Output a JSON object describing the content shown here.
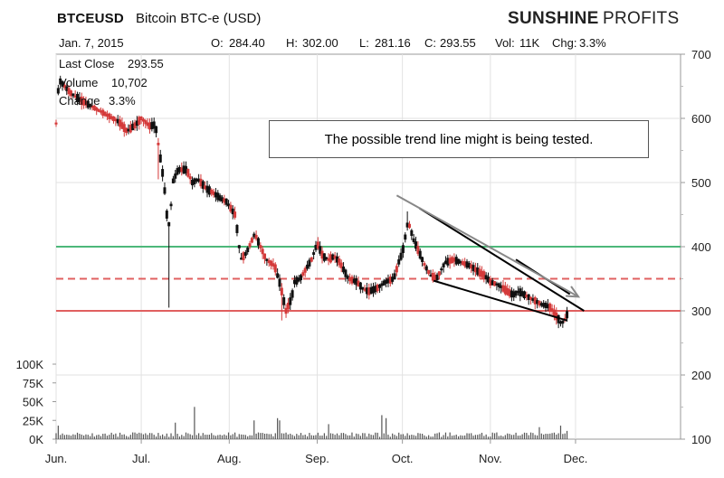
{
  "header": {
    "symbol": "BTCEUSD",
    "description": "Bitcoin BTC-e (USD)",
    "brand_bold": "SUNSHINE",
    "brand_light": "PROFITS",
    "date": "Jan. 7, 2015",
    "ohlc": [
      {
        "label": "O:",
        "value": "284.40"
      },
      {
        "label": "H:",
        "value": "302.00"
      },
      {
        "label": "L:",
        "value": "281.16"
      },
      {
        "label": "C:",
        "value": "293.55"
      },
      {
        "label": "Vol:",
        "value": "11K"
      },
      {
        "label": "Chg:",
        "value": "3.3%"
      }
    ],
    "last_close_label": "Last Close",
    "last_close": "293.55",
    "volume_label": "Volume",
    "volume": "10,702",
    "change_label": "Change",
    "change": "3.3%"
  },
  "annotation": "The possible trend line might is being tested.",
  "chart_data": {
    "type": "candlestick",
    "y_ticks": [
      "700",
      "600",
      "500",
      "400",
      "300",
      "200",
      "100"
    ],
    "y_range": [
      100,
      700
    ],
    "volume_ticks": [
      "100K",
      "75K",
      "50K",
      "25K",
      "0K"
    ],
    "volume_range": [
      0,
      100000
    ],
    "x_labels": [
      "Jun.",
      "Jul.",
      "Aug.",
      "Sep.",
      "Oct.",
      "Nov.",
      "Dec."
    ],
    "x_range_days": [
      0,
      220
    ],
    "x_label_days": [
      0,
      30,
      61,
      92,
      122,
      153,
      183
    ],
    "horizontal_lines": [
      {
        "value": 400,
        "color": "#4db87a",
        "style": "solid"
      },
      {
        "value": 350,
        "color": "#e06060",
        "style": "dashed"
      },
      {
        "value": 300,
        "color": "#e06060",
        "style": "solid"
      }
    ],
    "trend_lines": [
      {
        "from": [
          128,
          460
        ],
        "to": [
          186,
          300
        ],
        "color": "#000"
      },
      {
        "from": [
          133,
          347
        ],
        "to": [
          180,
          285
        ],
        "color": "#000"
      },
      {
        "from": [
          162,
          380
        ],
        "to": [
          181,
          326
        ],
        "color": "#000"
      }
    ],
    "arrow": {
      "from": [
        120,
        480
      ],
      "to": [
        184,
        322
      ],
      "color": "#888"
    },
    "price_anchors": [
      [
        0,
        592
      ],
      [
        1,
        660
      ],
      [
        5,
        640
      ],
      [
        8,
        630
      ],
      [
        12,
        620
      ],
      [
        18,
        605
      ],
      [
        22,
        595
      ],
      [
        25,
        580
      ],
      [
        28,
        590
      ],
      [
        30,
        600
      ],
      [
        33,
        588
      ],
      [
        35,
        590
      ],
      [
        36,
        560
      ],
      [
        37,
        530
      ],
      [
        38,
        500
      ],
      [
        39,
        450
      ],
      [
        40,
        430
      ],
      [
        41,
        500
      ],
      [
        43,
        520
      ],
      [
        46,
        520
      ],
      [
        48,
        500
      ],
      [
        50,
        505
      ],
      [
        53,
        490
      ],
      [
        55,
        485
      ],
      [
        58,
        475
      ],
      [
        60,
        470
      ],
      [
        63,
        450
      ],
      [
        64,
        420
      ],
      [
        65,
        380
      ],
      [
        67,
        390
      ],
      [
        70,
        420
      ],
      [
        72,
        400
      ],
      [
        74,
        380
      ],
      [
        77,
        370
      ],
      [
        79,
        340
      ],
      [
        80,
        320
      ],
      [
        81,
        300
      ],
      [
        83,
        320
      ],
      [
        84,
        345
      ],
      [
        86,
        350
      ],
      [
        88,
        365
      ],
      [
        90,
        380
      ],
      [
        92,
        405
      ],
      [
        94,
        385
      ],
      [
        96,
        380
      ],
      [
        98,
        385
      ],
      [
        100,
        375
      ],
      [
        103,
        350
      ],
      [
        106,
        345
      ],
      [
        108,
        335
      ],
      [
        110,
        330
      ],
      [
        113,
        335
      ],
      [
        116,
        345
      ],
      [
        119,
        350
      ],
      [
        121,
        380
      ],
      [
        122,
        390
      ],
      [
        124,
        440
      ],
      [
        125,
        425
      ],
      [
        126,
        410
      ],
      [
        128,
        390
      ],
      [
        130,
        370
      ],
      [
        132,
        355
      ],
      [
        134,
        350
      ],
      [
        137,
        375
      ],
      [
        140,
        380
      ],
      [
        143,
        375
      ],
      [
        146,
        370
      ],
      [
        149,
        360
      ],
      [
        151,
        355
      ],
      [
        153,
        345
      ],
      [
        156,
        340
      ],
      [
        159,
        330
      ],
      [
        161,
        325
      ],
      [
        163,
        330
      ],
      [
        165,
        325
      ],
      [
        167,
        320
      ],
      [
        169,
        315
      ],
      [
        171,
        310
      ],
      [
        173,
        308
      ],
      [
        174,
        305
      ],
      [
        175,
        300
      ],
      [
        176,
        293
      ],
      [
        177,
        287
      ],
      [
        178,
        280
      ],
      [
        179,
        285
      ],
      [
        180,
        294
      ]
    ],
    "volume_spikes": [
      {
        "day": 1,
        "value": 18000
      },
      {
        "day": 42,
        "value": 22000
      },
      {
        "day": 49,
        "value": 43000
      },
      {
        "day": 70,
        "value": 25000
      },
      {
        "day": 78,
        "value": 28000
      },
      {
        "day": 79,
        "value": 25000
      },
      {
        "day": 96,
        "value": 20000
      },
      {
        "day": 115,
        "value": 32000
      },
      {
        "day": 116,
        "value": 28000
      },
      {
        "day": 170,
        "value": 16000
      },
      {
        "day": 178,
        "value": 18000
      },
      {
        "day": 180,
        "value": 11000
      }
    ]
  }
}
